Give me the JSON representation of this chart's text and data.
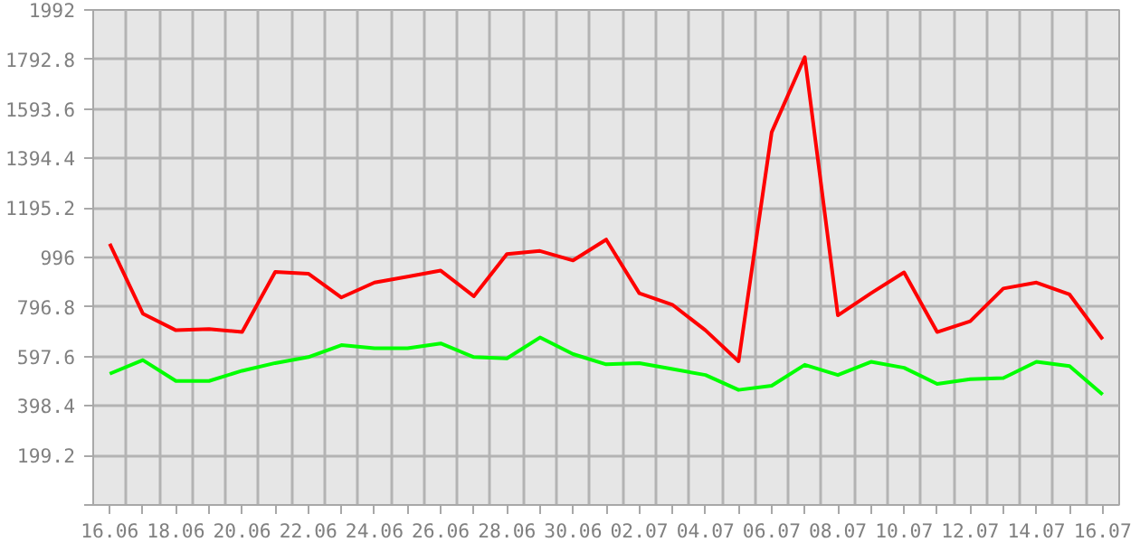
{
  "chart_data": {
    "type": "line",
    "categories": [
      "16.06",
      null,
      "18.06",
      null,
      "20.06",
      null,
      "22.06",
      null,
      "24.06",
      null,
      "26.06",
      null,
      "28.06",
      null,
      "30.06",
      null,
      "02.07",
      null,
      "04.07",
      null,
      "06.07",
      null,
      "08.07",
      null,
      "10.07",
      null,
      "12.07",
      null,
      "14.07",
      null,
      "16.07"
    ],
    "series": [
      {
        "color": "#ff0000",
        "values": [
          1051,
          770,
          703,
          708,
          696,
          938,
          931,
          835,
          895,
          919,
          943,
          840,
          1010,
          1022,
          984,
          1068,
          852,
          806,
          703,
          578,
          1500,
          1802,
          763,
          852,
          936,
          696,
          739,
          871,
          895,
          847,
          667
        ]
      },
      {
        "color": "#00ff00",
        "values": [
          528,
          583,
          499,
          499,
          540,
          571,
          595,
          643,
          631,
          631,
          650,
          595,
          590,
          674,
          607,
          566,
          571,
          547,
          523,
          463,
          480,
          564,
          523,
          576,
          552,
          487,
          506,
          511,
          576,
          559,
          444
        ]
      }
    ],
    "ylim": [
      0,
      1992
    ],
    "yticks": [
      {
        "value": 0,
        "label": null
      },
      199.2,
      398.4,
      597.6,
      796.8,
      996,
      1195.2,
      1394.4,
      1593.6,
      1792.8,
      1992
    ],
    "grid": true
  }
}
